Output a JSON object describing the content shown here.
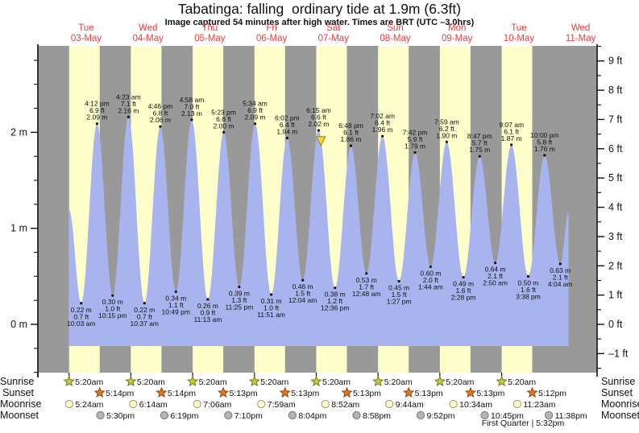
{
  "title": "Tabatinga: falling  ordinary tide at 1.9m (6.3ft)",
  "subtitle": "Image captured 54 minutes after high water. Times are BRT (UTC –3.0hrs)",
  "footer": "First Quarter | 5:32pm",
  "colors": {
    "day_band": "#ffffcc",
    "night_band": "#999999",
    "tide_fill": "#a8b4ee",
    "date_label": "#ee3b3b",
    "axis": "#111111",
    "sunrise_icon_fill": "#c9c93e",
    "sunrise_icon_stroke": "#77771e",
    "sunset_icon_fill": "#e8761e",
    "sunset_icon_stroke": "#8a4a10",
    "moonrise_icon_fill": "#ffffc9",
    "moonrise_icon_stroke": "#999977",
    "moonset_icon_fill": "#b5b5b5",
    "moonset_icon_stroke": "#777777",
    "marker_fill": "#f0d840",
    "marker_stroke": "#998800"
  },
  "chart_data": {
    "type": "area",
    "title": "Tabatinga tide curve",
    "ylabel_left": "metres",
    "ylabel_right": "feet",
    "ylim_m": [
      -0.5,
      2.9
    ],
    "days": [
      {
        "dow": "Tue",
        "date": "03-May"
      },
      {
        "dow": "Wed",
        "date": "04-May"
      },
      {
        "dow": "Thu",
        "date": "05-May"
      },
      {
        "dow": "Fri",
        "date": "06-May"
      },
      {
        "dow": "Sat",
        "date": "07-May"
      },
      {
        "dow": "Sun",
        "date": "08-May"
      },
      {
        "dow": "Mon",
        "date": "09-May"
      },
      {
        "dow": "Tue",
        "date": "10-May"
      },
      {
        "dow": "Wed",
        "date": "11-May"
      }
    ],
    "left_ticks": [
      {
        "v": 2,
        "label": "2 m"
      },
      {
        "v": 1,
        "label": "1 m"
      },
      {
        "v": 0,
        "label": "0 m"
      }
    ],
    "right_ticks": [
      {
        "v": 9,
        "label": "9 ft"
      },
      {
        "v": 8,
        "label": "8 ft"
      },
      {
        "v": 7,
        "label": "7 ft"
      },
      {
        "v": 6,
        "label": "6 ft"
      },
      {
        "v": 5,
        "label": "5 ft"
      },
      {
        "v": 4,
        "label": "4 ft"
      },
      {
        "v": 3,
        "label": "3 ft"
      },
      {
        "v": 2,
        "label": "2 ft"
      },
      {
        "v": 1,
        "label": "1 ft"
      },
      {
        "v": 0,
        "label": "0 ft"
      },
      {
        "v": -1,
        "label": "–1 ft"
      }
    ],
    "events": [
      {
        "kind": "edge",
        "day": 0,
        "h": 5.33,
        "m": 1.2
      },
      {
        "kind": "low",
        "day": 0,
        "t": "10:03 am",
        "m": 0.22,
        "ft": 0.7
      },
      {
        "kind": "high",
        "day": 0,
        "t": "4:12 pm",
        "m": 2.09,
        "ft": 6.9
      },
      {
        "kind": "low",
        "day": 0,
        "t": "10:15 pm",
        "m": 0.3,
        "ft": 1.0
      },
      {
        "kind": "high",
        "day": 1,
        "t": "4:23 am",
        "m": 2.16,
        "ft": 7.1
      },
      {
        "kind": "low",
        "day": 1,
        "t": "10:37 am",
        "m": 0.22,
        "ft": 0.7
      },
      {
        "kind": "high",
        "day": 1,
        "t": "4:46 pm",
        "m": 2.06,
        "ft": 6.8
      },
      {
        "kind": "low",
        "day": 1,
        "t": "10:49 pm",
        "m": 0.34,
        "ft": 1.1
      },
      {
        "kind": "high",
        "day": 2,
        "t": "4:58 am",
        "m": 2.13,
        "ft": 7.0
      },
      {
        "kind": "low",
        "day": 2,
        "t": "11:13 am",
        "m": 0.26,
        "ft": 0.9
      },
      {
        "kind": "high",
        "day": 2,
        "t": "5:23 pm",
        "m": 2.0,
        "ft": 6.6
      },
      {
        "kind": "low",
        "day": 2,
        "t": "11:25 pm",
        "m": 0.39,
        "ft": 1.3
      },
      {
        "kind": "high",
        "day": 3,
        "t": "5:34 am",
        "m": 2.09,
        "ft": 6.9
      },
      {
        "kind": "low",
        "day": 3,
        "t": "11:51 am",
        "m": 0.31,
        "ft": 1.0
      },
      {
        "kind": "high",
        "day": 3,
        "t": "6:02 pm",
        "m": 1.94,
        "ft": 6.4
      },
      {
        "kind": "low",
        "day": 4,
        "t": "12:04 am",
        "m": 0.46,
        "ft": 1.5
      },
      {
        "kind": "high",
        "day": 4,
        "t": "6:15 am",
        "m": 2.02,
        "ft": 6.6
      },
      {
        "kind": "low",
        "day": 4,
        "t": "12:36 pm",
        "m": 0.38,
        "ft": 1.2
      },
      {
        "kind": "high",
        "day": 4,
        "t": "6:48 pm",
        "m": 1.86,
        "ft": 6.1
      },
      {
        "kind": "low",
        "day": 5,
        "t": "12:48 am",
        "m": 0.53,
        "ft": 1.7
      },
      {
        "kind": "high",
        "day": 5,
        "t": "7:02 am",
        "m": 1.96,
        "ft": 6.4
      },
      {
        "kind": "low",
        "day": 5,
        "t": "1:27 pm",
        "m": 0.45,
        "ft": 1.5
      },
      {
        "kind": "high",
        "day": 5,
        "t": "7:42 pm",
        "m": 1.79,
        "ft": 5.9
      },
      {
        "kind": "low",
        "day": 6,
        "t": "1:44 am",
        "m": 0.6,
        "ft": 2.0
      },
      {
        "kind": "high",
        "day": 6,
        "t": "7:59 am",
        "m": 1.9,
        "ft": 6.2
      },
      {
        "kind": "low",
        "day": 6,
        "t": "2:28 pm",
        "m": 0.49,
        "ft": 1.6
      },
      {
        "kind": "high",
        "day": 6,
        "t": "8:47 pm",
        "m": 1.75,
        "ft": 5.7
      },
      {
        "kind": "low",
        "day": 7,
        "t": "2:50 am",
        "m": 0.64,
        "ft": 2.1
      },
      {
        "kind": "high",
        "day": 7,
        "t": "9:07 am",
        "m": 1.87,
        "ft": 6.1
      },
      {
        "kind": "low",
        "day": 7,
        "t": "3:38 pm",
        "m": 0.5,
        "ft": 1.6
      },
      {
        "kind": "high",
        "day": 7,
        "t": "10:00 pm",
        "m": 1.76,
        "ft": 5.8
      },
      {
        "kind": "low",
        "day": 8,
        "t": "4:04 am",
        "m": 0.63,
        "ft": 2.1
      },
      {
        "kind": "edge",
        "day": 8,
        "h": 7.3,
        "m": 1.17
      }
    ],
    "current_marker": {
      "day": 4,
      "h": 7.15,
      "m": 1.93
    }
  },
  "astro": {
    "rows": [
      {
        "label": "Sunrise",
        "icon": "sunrise",
        "times": [
          "5:20am",
          "5:20am",
          "5:20am",
          "5:20am",
          "5:20am",
          "5:20am",
          "5:20am",
          "5:20am"
        ]
      },
      {
        "label": "Sunset",
        "icon": "sunset",
        "times": [
          "5:14pm",
          "5:14pm",
          "5:13pm",
          "5:13pm",
          "5:13pm",
          "5:13pm",
          "5:13pm",
          "5:12pm"
        ]
      },
      {
        "label": "Moonrise",
        "icon": "moonrise",
        "times": [
          "5:24am",
          "6:14am",
          "7:06am",
          "7:59am",
          "8:52am",
          "9:44am",
          "10:34am",
          "11:23am"
        ]
      },
      {
        "label": "Moonset",
        "icon": "moonset",
        "times": [
          "5:30pm",
          "6:19pm",
          "7:10pm",
          "8:04pm",
          "8:58pm",
          "9:52pm",
          "10:45pm",
          "11:38pm"
        ]
      }
    ]
  }
}
